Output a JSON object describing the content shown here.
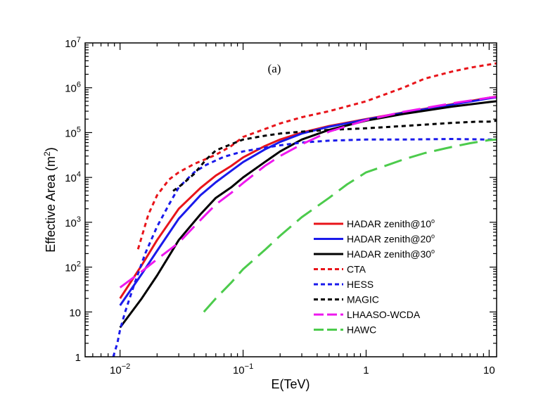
{
  "chart_data": {
    "type": "line",
    "title": "",
    "panel_label": "(a)",
    "xlabel": "E(TeV)",
    "ylabel": "Effective Area (m",
    "ylabel_sup": "2",
    "ylabel_close": ")",
    "xscale": "log",
    "yscale": "log",
    "xlim": [
      0.0052,
      11.5
    ],
    "ylim": [
      1,
      10000000
    ],
    "grid": false,
    "legend_position": "lower-right",
    "x_ticks": [
      {
        "value": 0.01,
        "base": "10",
        "exp": "−2"
      },
      {
        "value": 0.1,
        "base": "10",
        "exp": "−1"
      },
      {
        "value": 1,
        "base": "1",
        "exp": ""
      },
      {
        "value": 10,
        "base": "10",
        "exp": ""
      }
    ],
    "y_ticks": [
      {
        "value": 1,
        "base": "1",
        "exp": ""
      },
      {
        "value": 10,
        "base": "10",
        "exp": ""
      },
      {
        "value": 100,
        "base": "10",
        "exp": "2"
      },
      {
        "value": 1000,
        "base": "10",
        "exp": "3"
      },
      {
        "value": 10000,
        "base": "10",
        "exp": "4"
      },
      {
        "value": 100000,
        "base": "10",
        "exp": "5"
      },
      {
        "value": 1000000,
        "base": "10",
        "exp": "6"
      },
      {
        "value": 10000000,
        "base": "10",
        "exp": "7"
      }
    ],
    "series": [
      {
        "name": "HADAR zenith@10",
        "name_sup": "o",
        "color": "#e8141a",
        "dash": "solid",
        "points": [
          [
            0.01,
            20
          ],
          [
            0.015,
            110
          ],
          [
            0.02,
            400
          ],
          [
            0.03,
            2000
          ],
          [
            0.045,
            5800
          ],
          [
            0.06,
            11000
          ],
          [
            0.08,
            18000
          ],
          [
            0.1,
            28000
          ],
          [
            0.15,
            50000
          ],
          [
            0.2,
            70000
          ],
          [
            0.3,
            100000
          ],
          [
            0.5,
            140000
          ],
          [
            1,
            200000
          ],
          [
            2,
            280000
          ],
          [
            5,
            430000
          ],
          [
            10,
            600000
          ],
          [
            11.5,
            630000
          ]
        ]
      },
      {
        "name": "HADAR zenith@20",
        "name_sup": "o",
        "color": "#1a1aeb",
        "dash": "solid",
        "points": [
          [
            0.01,
            14
          ],
          [
            0.015,
            70
          ],
          [
            0.02,
            230
          ],
          [
            0.03,
            1200
          ],
          [
            0.045,
            4000
          ],
          [
            0.06,
            7800
          ],
          [
            0.08,
            14000
          ],
          [
            0.1,
            22000
          ],
          [
            0.15,
            42000
          ],
          [
            0.2,
            62000
          ],
          [
            0.3,
            95000
          ],
          [
            0.5,
            135000
          ],
          [
            1,
            195000
          ],
          [
            2,
            275000
          ],
          [
            5,
            420000
          ],
          [
            10,
            580000
          ],
          [
            11.5,
            610000
          ]
        ]
      },
      {
        "name": "HADAR zenith@30",
        "name_sup": "o",
        "color": "#000000",
        "dash": "solid",
        "points": [
          [
            0.01,
            4.5
          ],
          [
            0.015,
            20
          ],
          [
            0.02,
            65
          ],
          [
            0.03,
            400
          ],
          [
            0.045,
            1500
          ],
          [
            0.06,
            3500
          ],
          [
            0.08,
            6000
          ],
          [
            0.1,
            10000
          ],
          [
            0.15,
            22000
          ],
          [
            0.2,
            38000
          ],
          [
            0.3,
            70000
          ],
          [
            0.5,
            115000
          ],
          [
            1,
            185000
          ],
          [
            2,
            260000
          ],
          [
            5,
            380000
          ],
          [
            10,
            480000
          ],
          [
            11.5,
            500000
          ]
        ]
      },
      {
        "name": "CTA",
        "name_sup": "",
        "color": "#e8141a",
        "dash": "short",
        "points": [
          [
            0.014,
            250
          ],
          [
            0.017,
            1500
          ],
          [
            0.02,
            4000
          ],
          [
            0.025,
            9000
          ],
          [
            0.03,
            13000
          ],
          [
            0.04,
            20000
          ],
          [
            0.06,
            32000
          ],
          [
            0.08,
            50000
          ],
          [
            0.1,
            80000
          ],
          [
            0.15,
            120000
          ],
          [
            0.2,
            160000
          ],
          [
            0.3,
            220000
          ],
          [
            0.5,
            300000
          ],
          [
            1,
            500000
          ],
          [
            2,
            1000000
          ],
          [
            3,
            1600000
          ],
          [
            5,
            2300000
          ],
          [
            7,
            2800000
          ],
          [
            10,
            3300000
          ],
          [
            11.5,
            3500000
          ]
        ]
      },
      {
        "name": "HESS",
        "name_sup": "",
        "color": "#1a1aeb",
        "dash": "short",
        "points": [
          [
            0.0088,
            1
          ],
          [
            0.0095,
            2
          ],
          [
            0.01,
            4
          ],
          [
            0.011,
            10
          ],
          [
            0.013,
            40
          ],
          [
            0.016,
            200
          ],
          [
            0.02,
            800
          ],
          [
            0.025,
            2500
          ],
          [
            0.03,
            6000
          ],
          [
            0.04,
            13000
          ],
          [
            0.05,
            19000
          ],
          [
            0.07,
            29000
          ],
          [
            0.1,
            38000
          ],
          [
            0.15,
            46000
          ],
          [
            0.2,
            52000
          ],
          [
            0.3,
            60000
          ],
          [
            0.5,
            66000
          ],
          [
            1,
            70000
          ],
          [
            2,
            70000
          ],
          [
            5,
            72000
          ],
          [
            10,
            70000
          ],
          [
            11.5,
            70000
          ]
        ]
      },
      {
        "name": "MAGIC",
        "name_sup": "",
        "color": "#000000",
        "dash": "short",
        "points": [
          [
            0.027,
            5000
          ],
          [
            0.032,
            7000
          ],
          [
            0.04,
            12000
          ],
          [
            0.05,
            25000
          ],
          [
            0.06,
            40000
          ],
          [
            0.08,
            55000
          ],
          [
            0.1,
            70000
          ],
          [
            0.15,
            85000
          ],
          [
            0.2,
            95000
          ],
          [
            0.3,
            105000
          ],
          [
            0.5,
            115000
          ],
          [
            1,
            125000
          ],
          [
            2,
            140000
          ],
          [
            5,
            165000
          ],
          [
            8,
            175000
          ],
          [
            10,
            175000
          ],
          [
            11.5,
            185000
          ]
        ]
      },
      {
        "name": "LHAASO-WCDA",
        "name_sup": "",
        "color": "#ee18ee",
        "dash": "long-dash",
        "points": [
          [
            0.01,
            35
          ],
          [
            0.015,
            80
          ],
          [
            0.02,
            150
          ],
          [
            0.03,
            350
          ],
          [
            0.04,
            800
          ],
          [
            0.05,
            1500
          ],
          [
            0.06,
            2500
          ],
          [
            0.08,
            4500
          ],
          [
            0.1,
            7500
          ],
          [
            0.15,
            18000
          ],
          [
            0.2,
            30000
          ],
          [
            0.3,
            55000
          ],
          [
            0.5,
            105000
          ],
          [
            1,
            190000
          ],
          [
            2,
            290000
          ],
          [
            5,
            450000
          ],
          [
            10,
            600000
          ],
          [
            11.5,
            620000
          ]
        ]
      },
      {
        "name": "HAWC",
        "name_sup": "",
        "color": "#4ccb4c",
        "dash": "long-dash",
        "points": [
          [
            0.048,
            10
          ],
          [
            0.06,
            20
          ],
          [
            0.08,
            45
          ],
          [
            0.1,
            90
          ],
          [
            0.15,
            240
          ],
          [
            0.2,
            500
          ],
          [
            0.3,
            1300
          ],
          [
            0.5,
            3500
          ],
          [
            0.7,
            7000
          ],
          [
            1,
            13000
          ],
          [
            1.5,
            19000
          ],
          [
            2,
            25000
          ],
          [
            3,
            35000
          ],
          [
            5,
            48000
          ],
          [
            7,
            58000
          ],
          [
            10,
            68000
          ],
          [
            11.5,
            70000
          ]
        ]
      }
    ]
  }
}
